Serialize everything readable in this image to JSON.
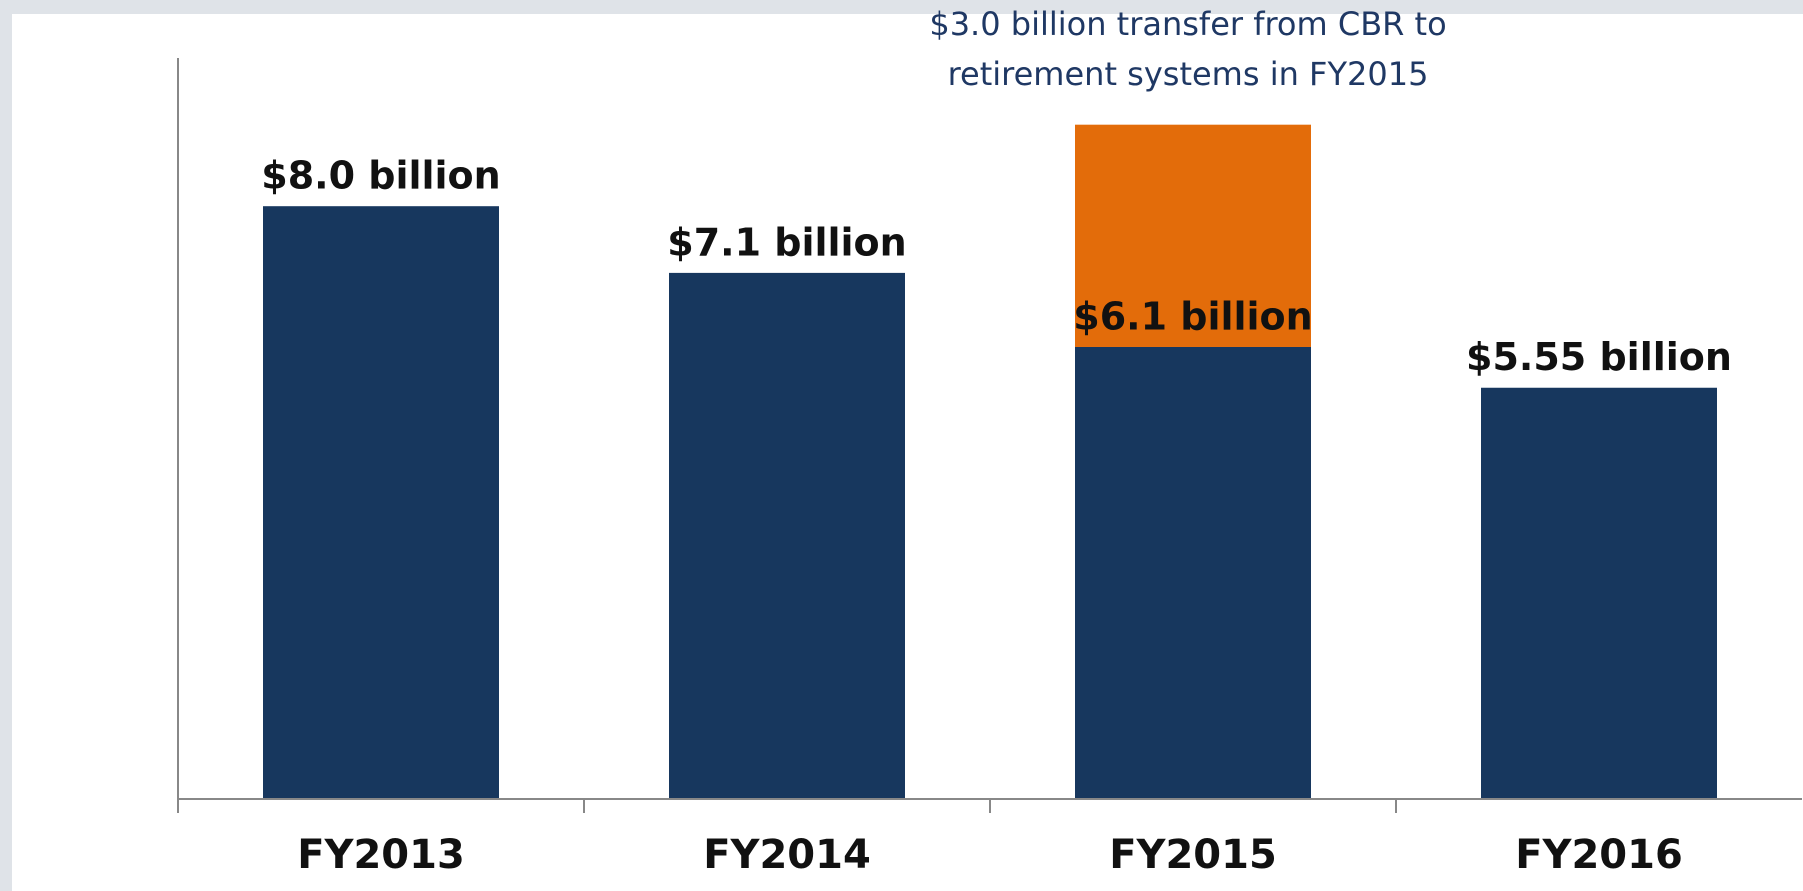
{
  "chart_data": {
    "type": "stacked_bar",
    "annotation": [
      "$3.0 billion transfer from CBR to",
      "retirement systems in FY2015"
    ],
    "categories": [
      "FY2013",
      "FY2014",
      "FY2015",
      "FY2016"
    ],
    "series": [
      {
        "color": "#17375e",
        "values": [
          8.0,
          7.1,
          6.1,
          5.55
        ],
        "value_labels": [
          "$8.0 billion",
          "$7.1 billion",
          "$6.1 billion",
          "$5.55 billion"
        ]
      },
      {
        "color": "#e36c0a",
        "values": [
          null,
          null,
          3.0,
          null
        ]
      }
    ],
    "ylim": [
      0,
      10
    ]
  }
}
